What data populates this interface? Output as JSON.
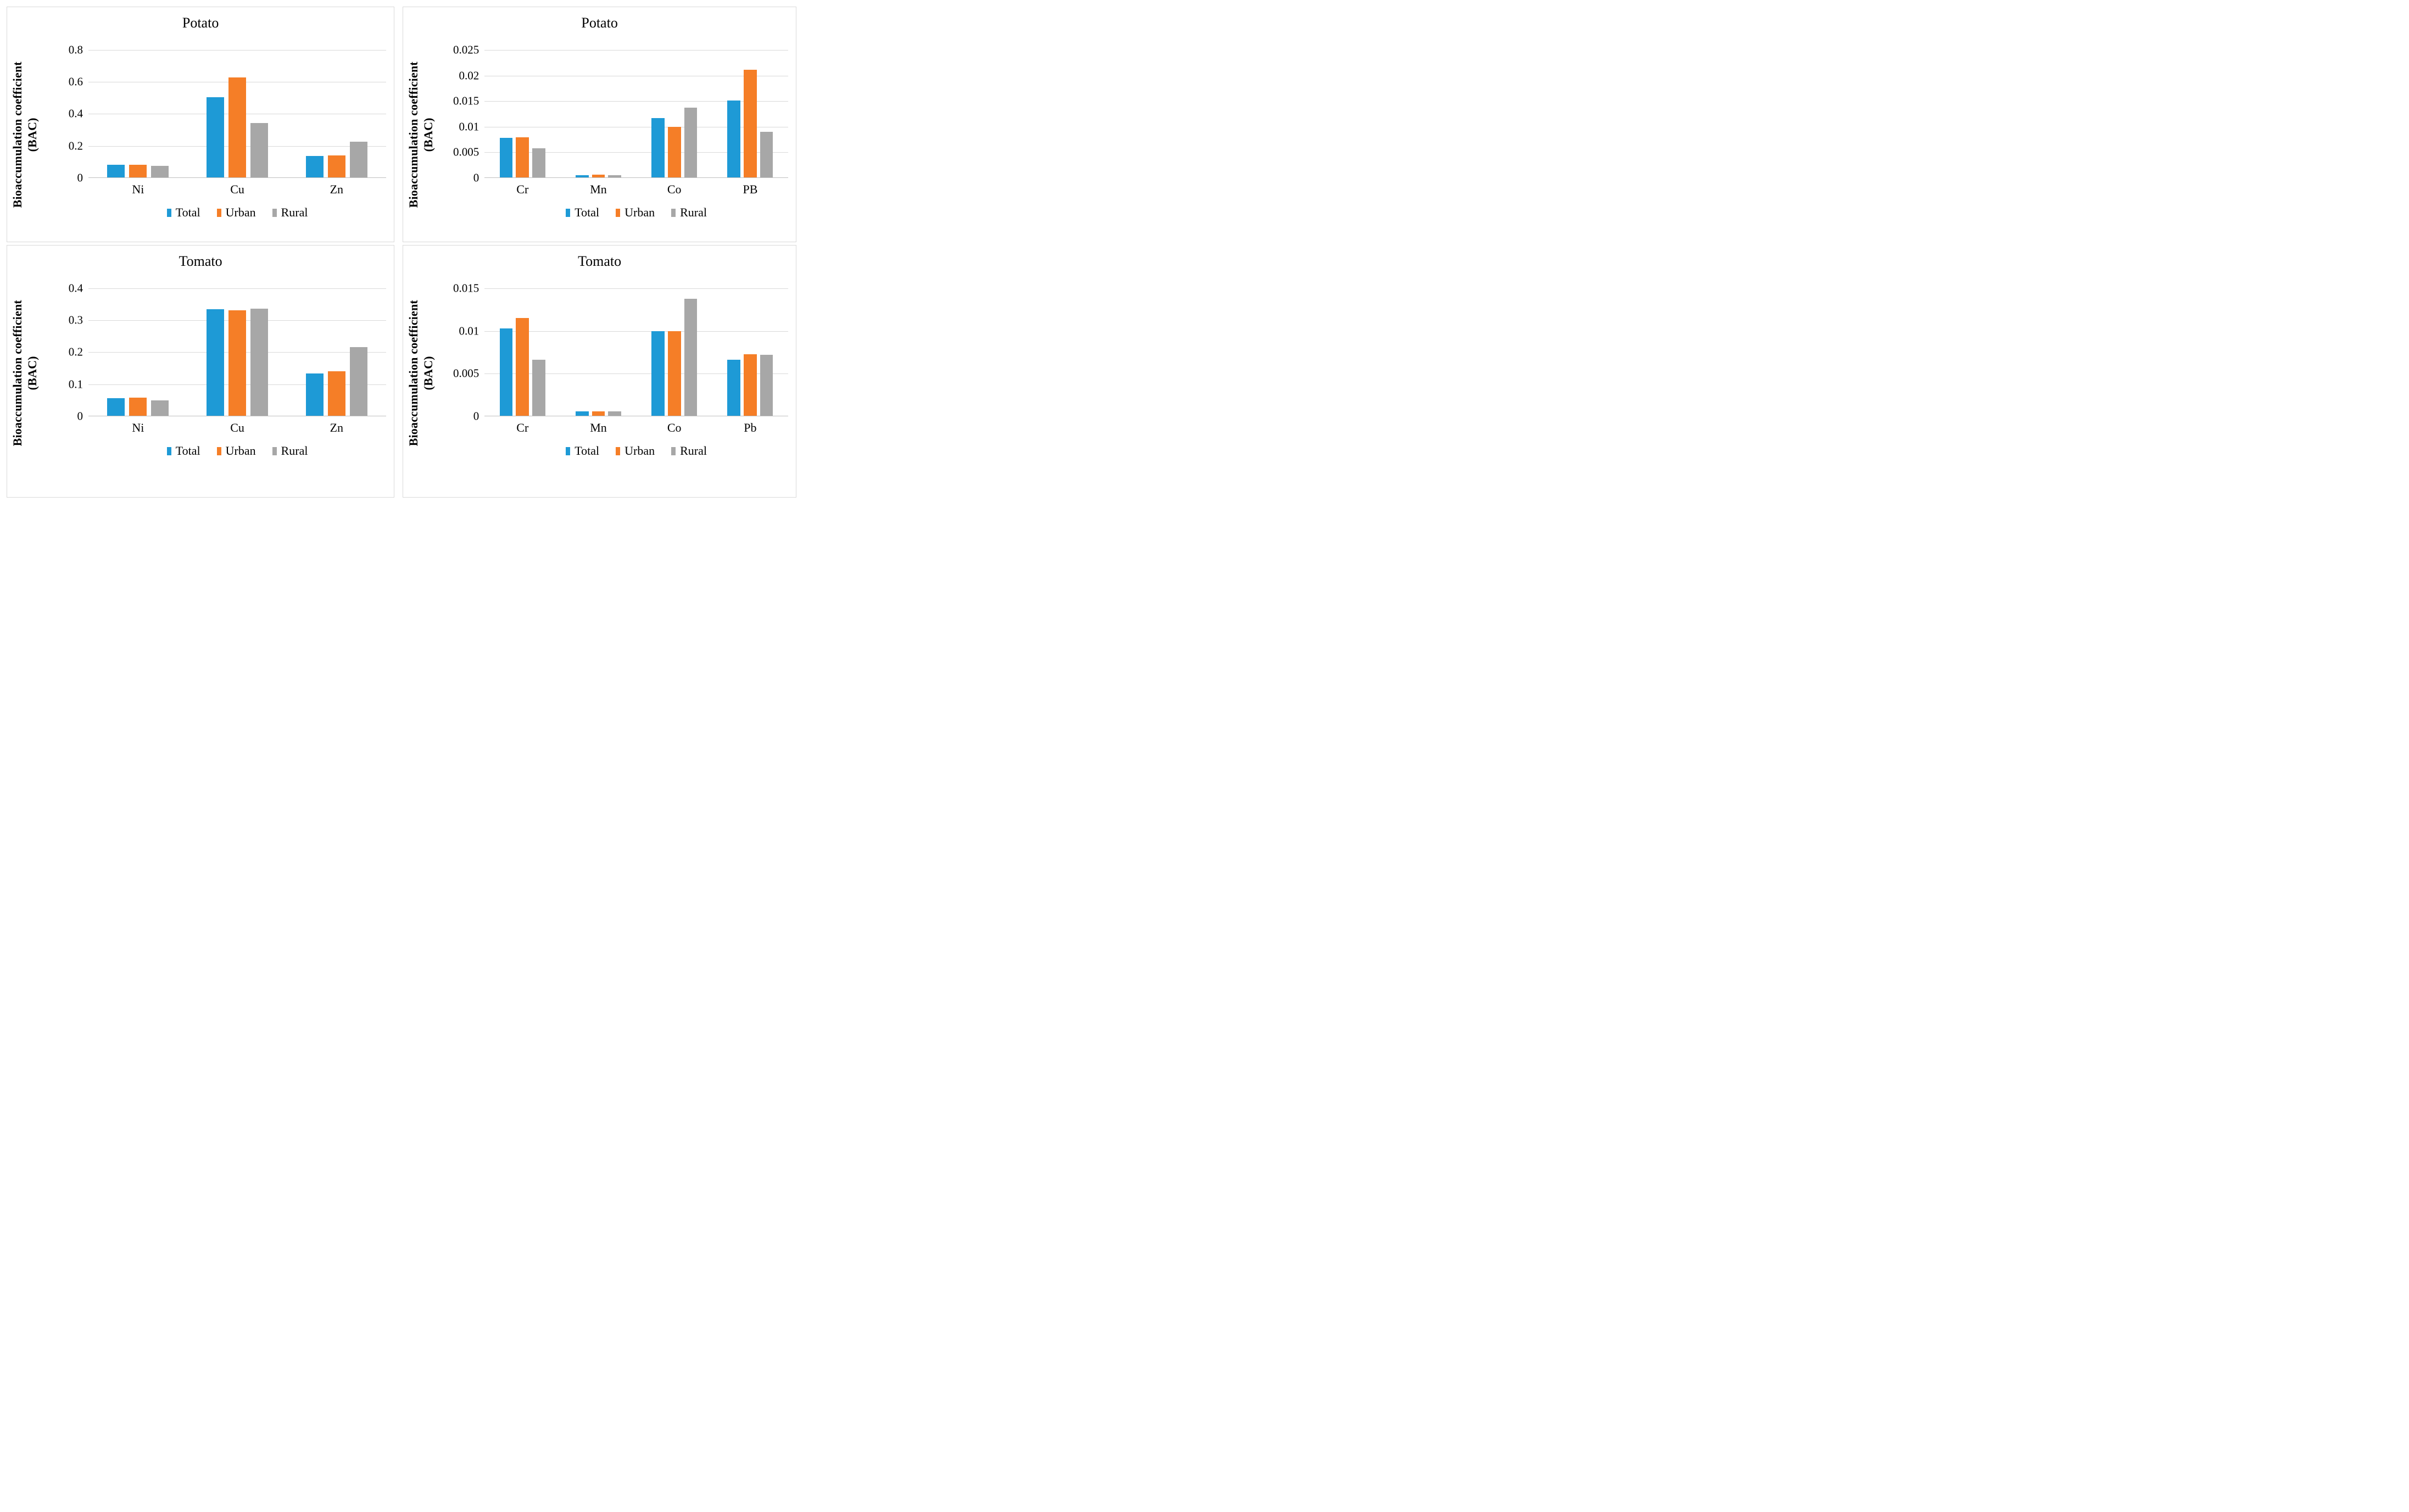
{
  "figure": {
    "ylabel_lines": [
      "Bioaccumulation coefficient",
      "(BAC)"
    ],
    "colors": {
      "total": "#1E9AD6",
      "urban": "#F57E27",
      "rural": "#A7A7A7",
      "gridline": "#D9D9D9",
      "axis": "#BFBFBF",
      "panel_border": "#D9D9D9",
      "text": "#000000"
    }
  },
  "chart_data": [
    {
      "id": "potato-ni-cu-zn",
      "type": "bar",
      "title": "Potato",
      "ylabel": "Bioaccumulation coefficient (BAC)",
      "categories": [
        "Ni",
        "Cu",
        "Zn"
      ],
      "series": [
        {
          "name": "Total",
          "color": "#1E9AD6",
          "values": [
            0.082,
            0.503,
            0.138
          ]
        },
        {
          "name": "Urban",
          "color": "#F57E27",
          "values": [
            0.082,
            0.627,
            0.141
          ]
        },
        {
          "name": "Rural",
          "color": "#A7A7A7",
          "values": [
            0.074,
            0.342,
            0.227
          ]
        }
      ],
      "ylim": [
        0,
        0.8
      ],
      "yticks": [
        0,
        0.2,
        0.4,
        0.6,
        0.8
      ],
      "ytick_labels": [
        "0",
        "0.2",
        "0.4",
        "0.6",
        "0.8"
      ],
      "legend": [
        "Total",
        "Urban",
        "Rural"
      ],
      "legend_position": "bottom",
      "grid": true
    },
    {
      "id": "potato-cr-mn-co-pb",
      "type": "bar",
      "title": "Potato",
      "ylabel": "Bioaccumulation coefficient (BAC)",
      "categories": [
        "Cr",
        "Mn",
        "Co",
        "PB"
      ],
      "series": [
        {
          "name": "Total",
          "color": "#1E9AD6",
          "values": [
            0.0078,
            0.0005,
            0.0117,
            0.0151
          ]
        },
        {
          "name": "Urban",
          "color": "#F57E27",
          "values": [
            0.0079,
            0.0006,
            0.01,
            0.0211
          ]
        },
        {
          "name": "Rural",
          "color": "#A7A7A7",
          "values": [
            0.0058,
            0.0005,
            0.0137,
            0.009
          ]
        }
      ],
      "ylim": [
        0,
        0.025
      ],
      "yticks": [
        0,
        0.005,
        0.01,
        0.015,
        0.02,
        0.025
      ],
      "ytick_labels": [
        "0",
        "0.005",
        "0.01",
        "0.015",
        "0.02",
        "0.025"
      ],
      "legend": [
        "Total",
        "Urban",
        "Rural"
      ],
      "legend_position": "bottom",
      "grid": true
    },
    {
      "id": "tomato-ni-cu-zn",
      "type": "bar",
      "title": "Tomato",
      "ylabel": "Bioaccumulation coefficient (BAC)",
      "categories": [
        "Ni",
        "Cu",
        "Zn"
      ],
      "series": [
        {
          "name": "Total",
          "color": "#1E9AD6",
          "values": [
            0.057,
            0.334,
            0.134
          ]
        },
        {
          "name": "Urban",
          "color": "#F57E27",
          "values": [
            0.058,
            0.331,
            0.14
          ]
        },
        {
          "name": "Rural",
          "color": "#A7A7A7",
          "values": [
            0.05,
            0.336,
            0.216
          ]
        }
      ],
      "ylim": [
        0,
        0.4
      ],
      "yticks": [
        0,
        0.1,
        0.2,
        0.3,
        0.4
      ],
      "ytick_labels": [
        "0",
        "0.1",
        "0.2",
        "0.3",
        "0.4"
      ],
      "legend": [
        "Total",
        "Urban",
        "Rural"
      ],
      "legend_position": "bottom",
      "grid": true
    },
    {
      "id": "tomato-cr-mn-co-pb",
      "type": "bar",
      "title": "Tomato",
      "ylabel": "Bioaccumulation coefficient (BAC)",
      "categories": [
        "Cr",
        "Mn",
        "Co",
        "Pb"
      ],
      "series": [
        {
          "name": "Total",
          "color": "#1E9AD6",
          "values": [
            0.0103,
            0.0006,
            0.01,
            0.0066
          ]
        },
        {
          "name": "Urban",
          "color": "#F57E27",
          "values": [
            0.0115,
            0.0006,
            0.01,
            0.0073
          ]
        },
        {
          "name": "Rural",
          "color": "#A7A7A7",
          "values": [
            0.0066,
            0.0006,
            0.0138,
            0.0072
          ]
        }
      ],
      "ylim": [
        0,
        0.015
      ],
      "yticks": [
        0,
        0.005,
        0.01,
        0.015
      ],
      "ytick_labels": [
        "0",
        "0.005",
        "0.01",
        "0.015"
      ],
      "legend": [
        "Total",
        "Urban",
        "Rural"
      ],
      "legend_position": "bottom",
      "grid": true
    }
  ]
}
